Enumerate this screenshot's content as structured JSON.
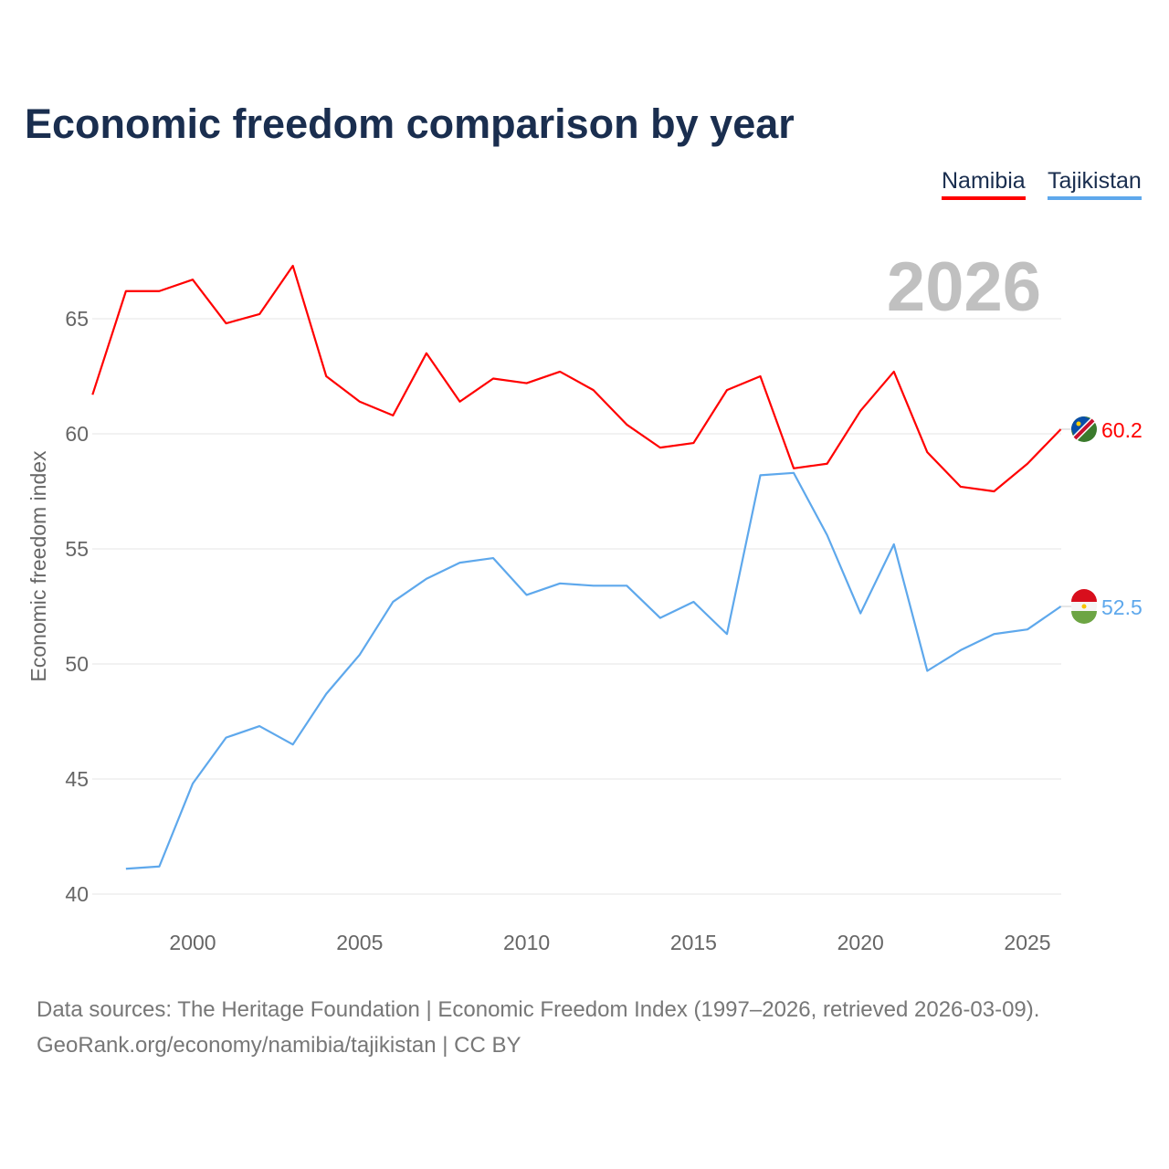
{
  "chart_data": {
    "type": "line",
    "title": "Economic freedom comparison by year",
    "xlabel": "",
    "ylabel": "Economic freedom index",
    "watermark_year": "2026",
    "xlim": [
      1997,
      2026
    ],
    "ylim": [
      40,
      67.5
    ],
    "grid": true,
    "legend_placement": "top-right",
    "x_ticks": [
      "2000",
      "2005",
      "2010",
      "2015",
      "2020",
      "2025"
    ],
    "y_ticks": [
      "40",
      "45",
      "50",
      "55",
      "60",
      "65"
    ],
    "x": [
      1997,
      1998,
      1999,
      2000,
      2001,
      2002,
      2003,
      2004,
      2005,
      2006,
      2007,
      2008,
      2009,
      2010,
      2011,
      2012,
      2013,
      2014,
      2015,
      2016,
      2017,
      2018,
      2019,
      2020,
      2021,
      2022,
      2023,
      2024,
      2025,
      2026
    ],
    "series": [
      {
        "name": "Namibia",
        "color": "#ff0000",
        "end_label": "60.2",
        "values": [
          61.7,
          66.2,
          66.2,
          66.7,
          64.8,
          65.2,
          67.3,
          62.5,
          61.4,
          60.8,
          63.5,
          61.4,
          62.4,
          62.2,
          62.7,
          61.9,
          60.4,
          59.4,
          59.6,
          61.9,
          62.5,
          58.5,
          58.7,
          61.0,
          62.7,
          59.2,
          57.7,
          57.5,
          58.7,
          60.2
        ]
      },
      {
        "name": "Tajikistan",
        "color": "#5ea8ec",
        "end_label": "52.5",
        "values": [
          null,
          41.1,
          41.2,
          44.8,
          46.8,
          47.3,
          46.5,
          48.7,
          50.4,
          52.7,
          53.7,
          54.4,
          54.6,
          53.0,
          53.5,
          53.4,
          53.4,
          52.0,
          52.7,
          51.3,
          58.2,
          58.3,
          55.6,
          52.2,
          55.2,
          49.7,
          50.6,
          51.3,
          51.5,
          52.5
        ]
      }
    ]
  },
  "source": {
    "line1": "Data sources: The Heritage Foundation | Economic Freedom Index (1997–2026, retrieved 2026-03-09).",
    "line2": "GeoRank.org/economy/namibia/tajikistan | CC BY"
  }
}
